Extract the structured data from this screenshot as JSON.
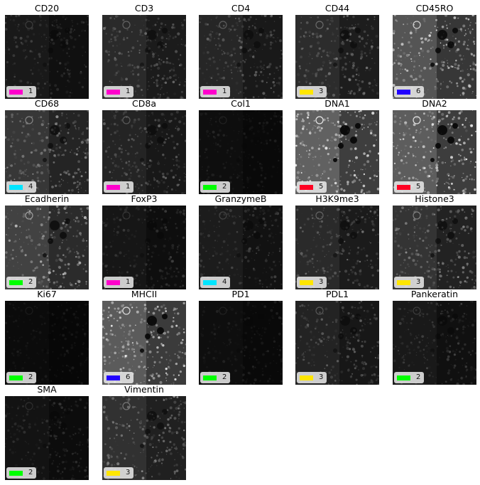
{
  "panels": [
    {
      "title": "CD20",
      "cluster": "1",
      "color": "#ff00cc",
      "brightness": 0.18
    },
    {
      "title": "CD3",
      "cluster": "1",
      "color": "#ff00cc",
      "brightness": 0.3
    },
    {
      "title": "CD4",
      "cluster": "1",
      "color": "#ff00cc",
      "brightness": 0.28
    },
    {
      "title": "CD44",
      "cluster": "3",
      "color": "#ffe600",
      "brightness": 0.32
    },
    {
      "title": "CD45RO",
      "cluster": "6",
      "color": "#2200ff",
      "brightness": 0.62
    },
    {
      "title": "CD68",
      "cluster": "4",
      "color": "#00e5ff",
      "brightness": 0.4
    },
    {
      "title": "CD8a",
      "cluster": "1",
      "color": "#ff00cc",
      "brightness": 0.27
    },
    {
      "title": "Col1",
      "cluster": "2",
      "color": "#00ff00",
      "brightness": 0.1
    },
    {
      "title": "DNA1",
      "cluster": "5",
      "color": "#ff0022",
      "brightness": 0.7
    },
    {
      "title": "DNA2",
      "cluster": "5",
      "color": "#ff0022",
      "brightness": 0.68
    },
    {
      "title": "Ecadherin",
      "cluster": "2",
      "color": "#00ff00",
      "brightness": 0.48
    },
    {
      "title": "FoxP3",
      "cluster": "1",
      "color": "#ff00cc",
      "brightness": 0.16
    },
    {
      "title": "GranzymeB",
      "cluster": "4",
      "color": "#00e5ff",
      "brightness": 0.2
    },
    {
      "title": "H3K9me3",
      "cluster": "3",
      "color": "#ffe600",
      "brightness": 0.3
    },
    {
      "title": "Histone3",
      "cluster": "3",
      "color": "#ffe600",
      "brightness": 0.38
    },
    {
      "title": "Ki67",
      "cluster": "2",
      "color": "#00ff00",
      "brightness": 0.08
    },
    {
      "title": "MHCII",
      "cluster": "6",
      "color": "#2200ff",
      "brightness": 0.66
    },
    {
      "title": "PD1",
      "cluster": "2",
      "color": "#00ff00",
      "brightness": 0.1
    },
    {
      "title": "PDL1",
      "cluster": "3",
      "color": "#ffe600",
      "brightness": 0.26
    },
    {
      "title": "Pankeratin",
      "cluster": "2",
      "color": "#00ff00",
      "brightness": 0.18
    },
    {
      "title": "SMA",
      "cluster": "2",
      "color": "#00ff00",
      "brightness": 0.14
    },
    {
      "title": "Vimentin",
      "cluster": "3",
      "color": "#ffe600",
      "brightness": 0.36
    }
  ]
}
